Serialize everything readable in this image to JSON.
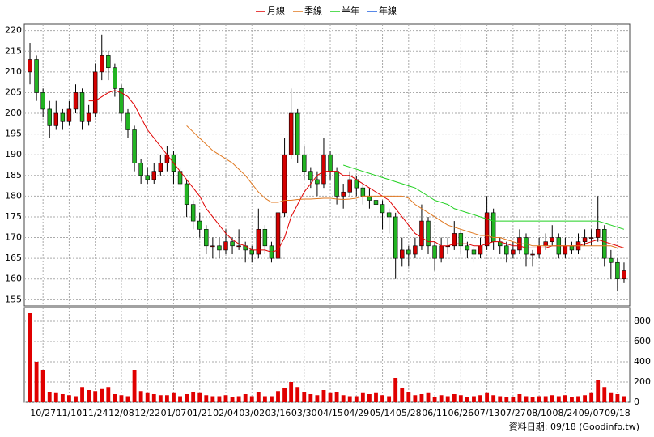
{
  "chart_data": {
    "type": "candlestick",
    "legend": [
      "月線",
      "季線",
      "半年",
      "年線"
    ],
    "source": "資料日期: 09/18 (Goodinfo.tw)",
    "up_color": "#d40000",
    "down_color": "#22b422",
    "volume_color": "#e00000",
    "grid": true,
    "ylim": [
      153.5,
      221.5
    ],
    "yticks": [
      155,
      160,
      165,
      170,
      175,
      180,
      185,
      190,
      195,
      200,
      205,
      210,
      215,
      220
    ],
    "y2lim": [
      0,
      936
    ],
    "y2ticks": [
      0,
      200,
      400,
      600,
      800
    ],
    "categories": [
      null,
      null,
      "10/27",
      null,
      null,
      null,
      "11/10",
      null,
      null,
      null,
      "11/24",
      null,
      null,
      null,
      "12/08",
      null,
      null,
      null,
      "12/22",
      null,
      null,
      null,
      "01/07",
      null,
      null,
      null,
      "01/21",
      null,
      null,
      null,
      "02/04",
      null,
      null,
      null,
      "03/02",
      null,
      null,
      null,
      "03/16",
      null,
      null,
      null,
      "03/30",
      null,
      null,
      null,
      "04/15",
      null,
      null,
      null,
      "04/29",
      null,
      null,
      null,
      "05/14",
      null,
      null,
      null,
      "05/28",
      null,
      null,
      null,
      "06/11",
      null,
      null,
      null,
      "06/26",
      null,
      null,
      null,
      "07/13",
      null,
      null,
      null,
      "07/27",
      null,
      null,
      null,
      "08/10",
      null,
      null,
      null,
      "08/24",
      null,
      null,
      null,
      "09/07",
      null,
      null,
      null,
      "09/18",
      null
    ],
    "ohlc": [
      [
        210,
        217,
        207,
        213
      ],
      [
        213,
        214,
        203,
        205
      ],
      [
        205,
        206,
        199,
        201
      ],
      [
        201,
        203,
        194,
        197
      ],
      [
        197,
        203,
        196,
        200
      ],
      [
        200,
        201,
        196,
        198
      ],
      [
        198,
        203,
        197,
        201
      ],
      [
        201,
        207,
        200,
        205
      ],
      [
        205,
        206,
        196,
        198
      ],
      [
        198,
        202,
        197,
        200
      ],
      [
        200,
        212,
        199,
        210
      ],
      [
        210,
        219,
        208,
        214
      ],
      [
        214,
        215,
        208,
        211
      ],
      [
        211,
        212,
        204,
        206
      ],
      [
        206,
        207,
        198,
        200
      ],
      [
        200,
        201,
        194,
        196
      ],
      [
        196,
        197,
        186,
        188
      ],
      [
        188,
        189,
        183,
        185
      ],
      [
        185,
        187,
        183,
        184
      ],
      [
        184,
        188,
        183,
        186
      ],
      [
        186,
        190,
        185,
        188
      ],
      [
        188,
        192,
        186,
        190
      ],
      [
        190,
        191,
        183,
        186
      ],
      [
        186,
        187,
        181,
        183
      ],
      [
        183,
        184,
        175,
        178
      ],
      [
        178,
        179,
        172,
        174
      ],
      [
        174,
        176,
        170,
        172
      ],
      [
        172,
        173,
        166,
        168
      ],
      [
        168,
        170,
        165,
        168
      ],
      [
        168,
        170,
        165,
        167
      ],
      [
        167,
        172,
        166,
        169
      ],
      [
        169,
        170,
        166,
        168
      ],
      [
        168,
        172,
        167,
        168
      ],
      [
        168,
        169,
        164,
        167
      ],
      [
        167,
        168,
        164,
        166
      ],
      [
        166,
        177,
        165,
        172
      ],
      [
        172,
        173,
        166,
        168
      ],
      [
        168,
        169,
        164,
        165
      ],
      [
        165,
        180,
        165,
        176
      ],
      [
        176,
        194,
        175,
        190
      ],
      [
        190,
        206,
        189,
        200
      ],
      [
        200,
        201,
        188,
        190
      ],
      [
        190,
        192,
        184,
        186
      ],
      [
        186,
        187,
        182,
        184
      ],
      [
        184,
        186,
        180,
        183
      ],
      [
        183,
        194,
        182,
        190
      ],
      [
        190,
        191,
        184,
        186
      ],
      [
        186,
        187,
        178,
        180
      ],
      [
        180,
        183,
        177,
        181
      ],
      [
        181,
        186,
        180,
        184
      ],
      [
        184,
        185,
        180,
        182
      ],
      [
        182,
        183,
        178,
        180
      ],
      [
        180,
        182,
        177,
        179
      ],
      [
        179,
        180,
        175,
        178
      ],
      [
        178,
        179,
        172,
        176
      ],
      [
        176,
        177,
        171,
        175
      ],
      [
        175,
        176,
        160,
        165
      ],
      [
        165,
        170,
        163,
        167
      ],
      [
        167,
        168,
        163,
        166
      ],
      [
        166,
        170,
        165,
        168
      ],
      [
        168,
        178,
        167,
        174
      ],
      [
        174,
        175,
        166,
        168
      ],
      [
        168,
        169,
        162,
        165
      ],
      [
        165,
        170,
        164,
        168
      ],
      [
        168,
        170,
        166,
        168
      ],
      [
        168,
        174,
        167,
        171
      ],
      [
        171,
        172,
        166,
        168
      ],
      [
        168,
        169,
        165,
        167
      ],
      [
        167,
        168,
        164,
        166
      ],
      [
        166,
        170,
        165,
        168
      ],
      [
        168,
        180,
        167,
        176
      ],
      [
        176,
        177,
        167,
        169
      ],
      [
        169,
        170,
        166,
        168
      ],
      [
        168,
        169,
        164,
        166
      ],
      [
        166,
        169,
        165,
        167
      ],
      [
        167,
        172,
        166,
        170
      ],
      [
        170,
        171,
        163,
        166
      ],
      [
        166,
        167,
        163,
        166
      ],
      [
        166,
        170,
        165,
        168
      ],
      [
        168,
        171,
        167,
        169
      ],
      [
        169,
        173,
        168,
        170
      ],
      [
        170,
        171,
        165,
        166
      ],
      [
        166,
        170,
        165,
        168
      ],
      [
        168,
        169,
        166,
        167
      ],
      [
        167,
        171,
        166,
        169
      ],
      [
        169,
        172,
        168,
        170
      ],
      [
        170,
        172,
        168,
        170
      ],
      [
        170,
        180,
        169,
        172
      ],
      [
        172,
        173,
        163,
        165
      ],
      [
        165,
        167,
        160,
        164
      ],
      [
        164,
        165,
        157,
        160
      ],
      [
        160,
        164,
        159,
        162
      ]
    ],
    "volumes": [
      880,
      400,
      320,
      100,
      90,
      80,
      70,
      60,
      150,
      120,
      110,
      130,
      150,
      80,
      70,
      60,
      320,
      110,
      90,
      80,
      70,
      70,
      90,
      60,
      80,
      100,
      90,
      70,
      60,
      60,
      70,
      50,
      60,
      80,
      60,
      100,
      60,
      60,
      110,
      140,
      200,
      150,
      100,
      80,
      70,
      120,
      90,
      100,
      70,
      60,
      60,
      90,
      80,
      90,
      70,
      60,
      240,
      140,
      100,
      70,
      80,
      90,
      50,
      70,
      60,
      80,
      70,
      50,
      60,
      70,
      90,
      70,
      60,
      50,
      50,
      80,
      60,
      50,
      60,
      60,
      70,
      60,
      70,
      50,
      60,
      70,
      90,
      220,
      150,
      90,
      80,
      60
    ],
    "series": [
      {
        "name": "月線",
        "color": "#e00000",
        "values": [
          null,
          null,
          null,
          null,
          null,
          null,
          null,
          null,
          null,
          203,
          203,
          204,
          205,
          205.5,
          205,
          204,
          202,
          199,
          196,
          194,
          192,
          190,
          188,
          186,
          184,
          182,
          180,
          177,
          175,
          173,
          171,
          169.5,
          168.5,
          168,
          167,
          167,
          167,
          166.5,
          167,
          170,
          175,
          178,
          181,
          183,
          185,
          186,
          186,
          186,
          185,
          185,
          184,
          183,
          182,
          181,
          180,
          179,
          177,
          175,
          173,
          171,
          170,
          169,
          169,
          168,
          168,
          168.5,
          168.5,
          168.5,
          168,
          168,
          168.5,
          169,
          169,
          168.5,
          168,
          168,
          167.5,
          167.5,
          167.5,
          167.5,
          168,
          168,
          168,
          168,
          168,
          168.5,
          169,
          169.5,
          169,
          168.5,
          168,
          167.5
        ]
      },
      {
        "name": "季線",
        "color": "#e07820",
        "values": [
          null,
          null,
          null,
          null,
          null,
          null,
          null,
          null,
          null,
          null,
          null,
          null,
          null,
          null,
          null,
          null,
          null,
          null,
          null,
          null,
          null,
          null,
          null,
          null,
          197,
          195.5,
          194,
          192.5,
          191,
          190,
          189,
          188,
          186.5,
          185,
          183,
          181,
          179.5,
          178.5,
          178.5,
          179,
          179,
          179.2,
          179.3,
          179.3,
          179.4,
          179.5,
          179.5,
          179.3,
          179.2,
          179.3,
          179.5,
          180,
          180,
          180,
          180,
          180,
          180,
          180,
          179.5,
          178,
          177,
          176,
          175,
          174,
          173,
          172.5,
          172,
          171.5,
          171,
          170.5,
          170.5,
          170,
          170,
          169.5,
          169,
          168.5,
          168.5,
          168,
          168,
          168,
          168,
          168,
          168,
          168,
          168,
          168,
          168,
          168,
          168,
          168,
          167.5,
          167.5
        ]
      },
      {
        "name": "半年",
        "color": "#20d020",
        "values": [
          null,
          null,
          null,
          null,
          null,
          null,
          null,
          null,
          null,
          null,
          null,
          null,
          null,
          null,
          null,
          null,
          null,
          null,
          null,
          null,
          null,
          null,
          null,
          null,
          null,
          null,
          null,
          null,
          null,
          null,
          null,
          null,
          null,
          null,
          null,
          null,
          null,
          null,
          null,
          null,
          null,
          null,
          null,
          null,
          null,
          null,
          null,
          null,
          187.5,
          187,
          186.5,
          186,
          185.5,
          185,
          184.5,
          184,
          183.5,
          183,
          182.5,
          182,
          181,
          180,
          179,
          178.5,
          178,
          177,
          176.5,
          176,
          175.5,
          175,
          174.5,
          174,
          174,
          174,
          174,
          174,
          174,
          174,
          174,
          174,
          174,
          174,
          174,
          174,
          174,
          174,
          174,
          174,
          173.5,
          173,
          172.5,
          172
        ]
      },
      {
        "name": "年線",
        "color": "#2060e0",
        "values": [
          null,
          null,
          null,
          null,
          null,
          null,
          null,
          null,
          null,
          null,
          null,
          null,
          null,
          null,
          null,
          null,
          null,
          null,
          null,
          null,
          null,
          null,
          null,
          null,
          null,
          null,
          null,
          null,
          null,
          null,
          null,
          null,
          null,
          null,
          null,
          null,
          null,
          null,
          null,
          null,
          null,
          null,
          null,
          null,
          null,
          null,
          null,
          null,
          null,
          null,
          null,
          null,
          null,
          null,
          null,
          null,
          null,
          null,
          null,
          null,
          null,
          null,
          null,
          null,
          null,
          null,
          null,
          null,
          null,
          null,
          null,
          null,
          null,
          null,
          null,
          null,
          null,
          null,
          null,
          null,
          null,
          null,
          null,
          null,
          null,
          null,
          null,
          null,
          null,
          null,
          null,
          null
        ]
      }
    ]
  }
}
